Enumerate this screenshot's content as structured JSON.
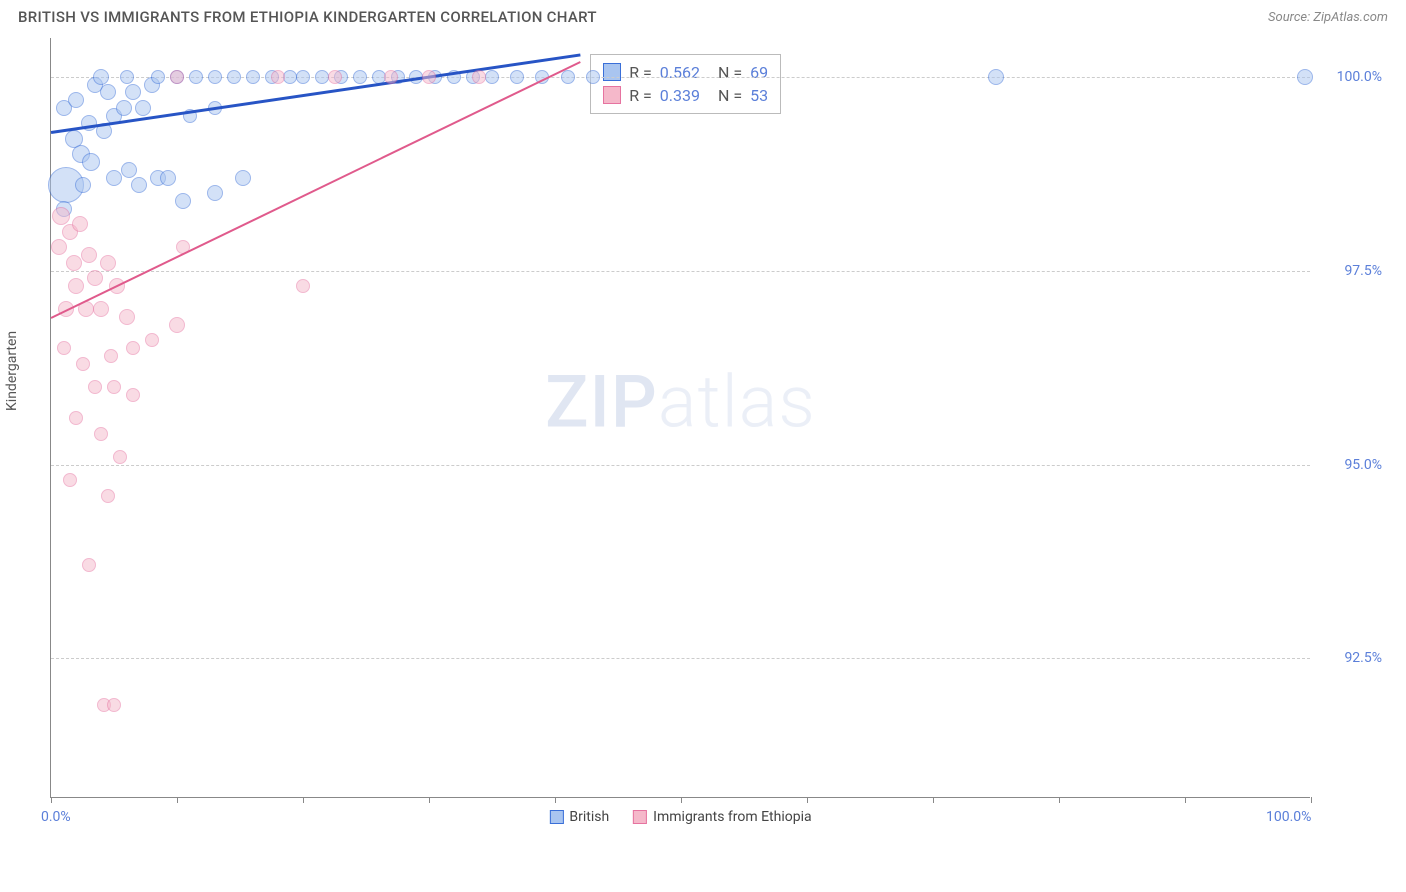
{
  "header": {
    "title": "BRITISH VS IMMIGRANTS FROM ETHIOPIA KINDERGARTEN CORRELATION CHART",
    "source": "Source: ZipAtlas.com"
  },
  "chart": {
    "type": "scatter",
    "y_axis_title": "Kindergarten",
    "background_color": "#ffffff",
    "grid_color": "#cccccc",
    "axis_color": "#888888",
    "xlim": [
      0,
      100
    ],
    "ylim": [
      90.7,
      100.5
    ],
    "x_ticks": [
      0,
      10,
      20,
      30,
      40,
      50,
      60,
      70,
      80,
      90,
      100
    ],
    "x_tick_labels": {
      "0": "0.0%",
      "100": "100.0%"
    },
    "y_gridlines": [
      92.5,
      95.0,
      97.5,
      100.0
    ],
    "y_tick_labels": {
      "92.5": "92.5%",
      "95.0": "95.0%",
      "97.5": "97.5%",
      "100.0": "100.0%"
    },
    "watermark": {
      "prefix": "ZIP",
      "suffix": "atlas"
    },
    "series": [
      {
        "name": "British",
        "fill_color": "#a9c5f0",
        "stroke_color": "#3a6fd8",
        "fill_opacity": 0.5,
        "r_value": "0.562",
        "n_value": "69",
        "trend": {
          "x1": 0,
          "y1": 99.3,
          "x2": 42,
          "y2": 100.3,
          "color": "#2754c5",
          "width": 2.5
        },
        "points": [
          {
            "x": 1.2,
            "y": 98.6,
            "r": 18
          },
          {
            "x": 1.8,
            "y": 99.2,
            "r": 9
          },
          {
            "x": 2.4,
            "y": 99.0,
            "r": 9
          },
          {
            "x": 3.2,
            "y": 98.9,
            "r": 9
          },
          {
            "x": 1.0,
            "y": 99.6,
            "r": 8
          },
          {
            "x": 2.0,
            "y": 99.7,
            "r": 8
          },
          {
            "x": 3.0,
            "y": 99.4,
            "r": 8
          },
          {
            "x": 4.2,
            "y": 99.3,
            "r": 8
          },
          {
            "x": 5.0,
            "y": 99.5,
            "r": 8
          },
          {
            "x": 5.8,
            "y": 99.6,
            "r": 8
          },
          {
            "x": 4.5,
            "y": 99.8,
            "r": 8
          },
          {
            "x": 6.5,
            "y": 99.8,
            "r": 8
          },
          {
            "x": 7.3,
            "y": 99.6,
            "r": 8
          },
          {
            "x": 8.0,
            "y": 99.9,
            "r": 8
          },
          {
            "x": 3.5,
            "y": 99.9,
            "r": 8
          },
          {
            "x": 2.5,
            "y": 98.6,
            "r": 8
          },
          {
            "x": 5.0,
            "y": 98.7,
            "r": 8
          },
          {
            "x": 6.2,
            "y": 98.8,
            "r": 8
          },
          {
            "x": 7.0,
            "y": 98.6,
            "r": 8
          },
          {
            "x": 8.5,
            "y": 98.7,
            "r": 8
          },
          {
            "x": 9.3,
            "y": 98.7,
            "r": 8
          },
          {
            "x": 10.5,
            "y": 98.4,
            "r": 8
          },
          {
            "x": 13.0,
            "y": 98.5,
            "r": 8
          },
          {
            "x": 15.2,
            "y": 98.7,
            "r": 8
          },
          {
            "x": 4.0,
            "y": 100.0,
            "r": 8
          },
          {
            "x": 6.0,
            "y": 100.0,
            "r": 7
          },
          {
            "x": 8.5,
            "y": 100.0,
            "r": 7
          },
          {
            "x": 10.0,
            "y": 100.0,
            "r": 7
          },
          {
            "x": 11.5,
            "y": 100.0,
            "r": 7
          },
          {
            "x": 13.0,
            "y": 100.0,
            "r": 7
          },
          {
            "x": 14.5,
            "y": 100.0,
            "r": 7
          },
          {
            "x": 16.0,
            "y": 100.0,
            "r": 7
          },
          {
            "x": 17.5,
            "y": 100.0,
            "r": 7
          },
          {
            "x": 19.0,
            "y": 100.0,
            "r": 7
          },
          {
            "x": 20.0,
            "y": 100.0,
            "r": 7
          },
          {
            "x": 21.5,
            "y": 100.0,
            "r": 7
          },
          {
            "x": 23.0,
            "y": 100.0,
            "r": 7
          },
          {
            "x": 24.5,
            "y": 100.0,
            "r": 7
          },
          {
            "x": 26.0,
            "y": 100.0,
            "r": 7
          },
          {
            "x": 27.5,
            "y": 100.0,
            "r": 7
          },
          {
            "x": 29.0,
            "y": 100.0,
            "r": 7
          },
          {
            "x": 30.5,
            "y": 100.0,
            "r": 7
          },
          {
            "x": 32.0,
            "y": 100.0,
            "r": 7
          },
          {
            "x": 33.5,
            "y": 100.0,
            "r": 7
          },
          {
            "x": 35.0,
            "y": 100.0,
            "r": 7
          },
          {
            "x": 37.0,
            "y": 100.0,
            "r": 7
          },
          {
            "x": 39.0,
            "y": 100.0,
            "r": 7
          },
          {
            "x": 41.0,
            "y": 100.0,
            "r": 7
          },
          {
            "x": 43.0,
            "y": 100.0,
            "r": 7
          },
          {
            "x": 75.0,
            "y": 100.0,
            "r": 8
          },
          {
            "x": 99.5,
            "y": 100.0,
            "r": 8
          },
          {
            "x": 11.0,
            "y": 99.5,
            "r": 7
          },
          {
            "x": 13.0,
            "y": 99.6,
            "r": 7
          },
          {
            "x": 1.0,
            "y": 98.3,
            "r": 8
          }
        ]
      },
      {
        "name": "Immigrants from Ethiopia",
        "fill_color": "#f5b8ca",
        "stroke_color": "#e673a0",
        "fill_opacity": 0.5,
        "r_value": "0.339",
        "n_value": "53",
        "trend": {
          "x1": 0,
          "y1": 96.9,
          "x2": 42,
          "y2": 100.2,
          "color": "#e05a8c",
          "width": 2
        },
        "points": [
          {
            "x": 0.8,
            "y": 98.2,
            "r": 9
          },
          {
            "x": 1.5,
            "y": 98.0,
            "r": 8
          },
          {
            "x": 2.3,
            "y": 98.1,
            "r": 8
          },
          {
            "x": 0.6,
            "y": 97.8,
            "r": 8
          },
          {
            "x": 1.8,
            "y": 97.6,
            "r": 8
          },
          {
            "x": 3.0,
            "y": 97.7,
            "r": 8
          },
          {
            "x": 2.0,
            "y": 97.3,
            "r": 8
          },
          {
            "x": 3.5,
            "y": 97.4,
            "r": 8
          },
          {
            "x": 4.5,
            "y": 97.6,
            "r": 8
          },
          {
            "x": 5.2,
            "y": 97.3,
            "r": 8
          },
          {
            "x": 1.2,
            "y": 97.0,
            "r": 8
          },
          {
            "x": 2.8,
            "y": 97.0,
            "r": 8
          },
          {
            "x": 4.0,
            "y": 97.0,
            "r": 8
          },
          {
            "x": 6.0,
            "y": 96.9,
            "r": 8
          },
          {
            "x": 10.0,
            "y": 96.8,
            "r": 8
          },
          {
            "x": 1.0,
            "y": 96.5,
            "r": 7
          },
          {
            "x": 2.5,
            "y": 96.3,
            "r": 7
          },
          {
            "x": 4.8,
            "y": 96.4,
            "r": 7
          },
          {
            "x": 6.5,
            "y": 96.5,
            "r": 7
          },
          {
            "x": 8.0,
            "y": 96.6,
            "r": 7
          },
          {
            "x": 3.5,
            "y": 96.0,
            "r": 7
          },
          {
            "x": 5.0,
            "y": 96.0,
            "r": 7
          },
          {
            "x": 6.5,
            "y": 95.9,
            "r": 7
          },
          {
            "x": 2.0,
            "y": 95.6,
            "r": 7
          },
          {
            "x": 4.0,
            "y": 95.4,
            "r": 7
          },
          {
            "x": 5.5,
            "y": 95.1,
            "r": 7
          },
          {
            "x": 1.5,
            "y": 94.8,
            "r": 7
          },
          {
            "x": 4.5,
            "y": 94.6,
            "r": 7
          },
          {
            "x": 3.0,
            "y": 93.7,
            "r": 7
          },
          {
            "x": 4.2,
            "y": 91.9,
            "r": 7
          },
          {
            "x": 5.0,
            "y": 91.9,
            "r": 7
          },
          {
            "x": 10.0,
            "y": 100.0,
            "r": 7
          },
          {
            "x": 18.0,
            "y": 100.0,
            "r": 7
          },
          {
            "x": 22.5,
            "y": 100.0,
            "r": 7
          },
          {
            "x": 27.0,
            "y": 100.0,
            "r": 7
          },
          {
            "x": 30.0,
            "y": 100.0,
            "r": 7
          },
          {
            "x": 34.0,
            "y": 100.0,
            "r": 7
          },
          {
            "x": 20.0,
            "y": 97.3,
            "r": 7
          },
          {
            "x": 10.5,
            "y": 97.8,
            "r": 7
          }
        ]
      }
    ],
    "bottom_legend": [
      {
        "label": "British",
        "fill": "#a9c5f0",
        "stroke": "#3a6fd8"
      },
      {
        "label": "Immigrants from Ethiopia",
        "fill": "#f5b8ca",
        "stroke": "#e673a0"
      }
    ]
  }
}
